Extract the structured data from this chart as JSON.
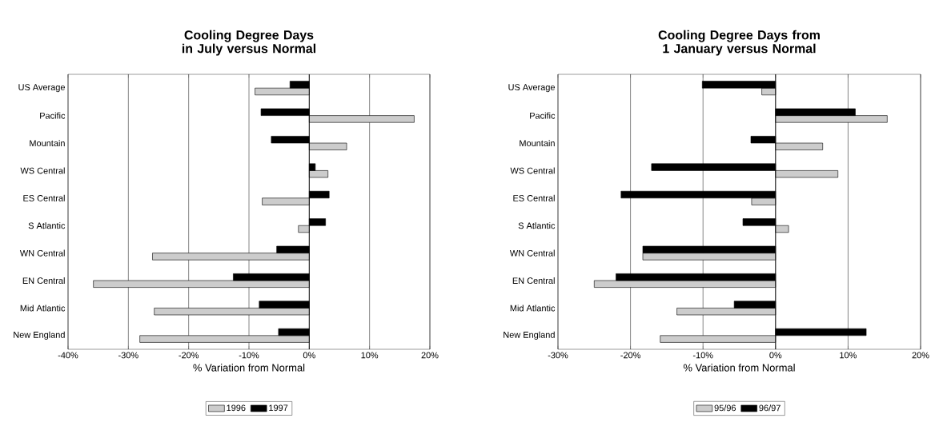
{
  "chart_data": [
    {
      "type": "bar",
      "orientation": "horizontal",
      "title": "Cooling Degree Days in July versus Normal",
      "xlabel": "% Variation from Normal",
      "categories": [
        "US Average",
        "Pacific",
        "Mountain",
        "WS Central",
        "ES Central",
        "S Atlantic",
        "WN Central",
        "EN Central",
        "Mid Atlantic",
        "New England"
      ],
      "series": [
        {
          "name": "1996",
          "color": "#cccccc",
          "values": [
            -9.0,
            17.4,
            6.2,
            3.1,
            -7.8,
            -1.8,
            -26.0,
            -35.8,
            -25.7,
            -28.1
          ]
        },
        {
          "name": "1997",
          "color": "#000000",
          "values": [
            -3.2,
            -8.0,
            -6.3,
            1.0,
            3.3,
            2.7,
            -5.4,
            -12.6,
            -8.3,
            -5.1
          ]
        }
      ],
      "xlim": [
        -40,
        20
      ],
      "xticks": [
        {
          "value": -40,
          "label": "-40%"
        },
        {
          "value": -30,
          "label": "-30%"
        },
        {
          "value": -20,
          "label": "-20%"
        },
        {
          "value": -10,
          "label": "-10%"
        },
        {
          "value": 0,
          "label": "0%"
        },
        {
          "value": 10,
          "label": "10%"
        },
        {
          "value": 20,
          "label": "20%"
        }
      ],
      "grid": "x",
      "legend": "bottom"
    },
    {
      "type": "bar",
      "orientation": "horizontal",
      "title": "Cooling Degree Days from 1 January versus Normal",
      "xlabel": "% Variation from Normal",
      "categories": [
        "US Average",
        "Pacific",
        "Mountain",
        "WS Central",
        "ES Central",
        "S Atlantic",
        "WN Central",
        "EN Central",
        "Mid Atlantic",
        "New England"
      ],
      "series": [
        {
          "name": "95/96",
          "color": "#cccccc",
          "values": [
            -1.9,
            15.4,
            6.5,
            8.6,
            -3.3,
            1.8,
            -18.3,
            -25.0,
            -13.6,
            -15.9
          ]
        },
        {
          "name": "96/97",
          "color": "#000000",
          "values": [
            -10.1,
            11.0,
            -3.4,
            -17.1,
            -21.3,
            -4.5,
            -18.3,
            -22.0,
            -5.7,
            12.5
          ]
        }
      ],
      "xlim": [
        -30,
        20
      ],
      "xticks": [
        {
          "value": -30,
          "label": "-30%"
        },
        {
          "value": -20,
          "label": "-20%"
        },
        {
          "value": -10,
          "label": "-10%"
        },
        {
          "value": 0,
          "label": "0%"
        },
        {
          "value": 10,
          "label": "10%"
        },
        {
          "value": 20,
          "label": "20%"
        }
      ],
      "grid": "x",
      "legend": "bottom"
    }
  ]
}
